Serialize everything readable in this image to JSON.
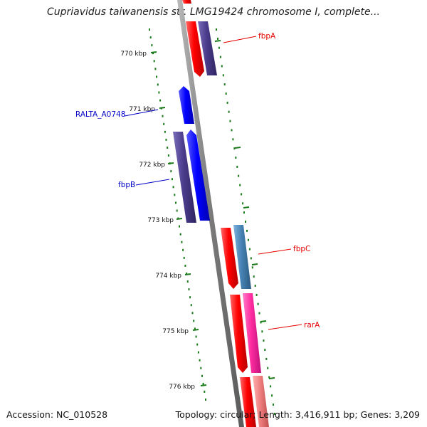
{
  "title": "Cupriavidus taiwanensis str. LMG19424 chromosome I, complete...",
  "footer": {
    "accession": "Accession: NC_010528",
    "summary": "Topology: circular; Length: 3,416,911 bp; Genes: 3,209"
  },
  "ticks": [
    "770 kbp",
    "771 kbp",
    "772 kbp",
    "773 kbp",
    "774 kbp",
    "775 kbp",
    "776 kbp"
  ],
  "gene_labels": [
    {
      "text": "fbpA",
      "color": "#e60000"
    },
    {
      "text": "RALTA_A0748",
      "color": "#0000c8"
    },
    {
      "text": "fbpB",
      "color": "#0000c8"
    },
    {
      "text": "fbpC",
      "color": "#e60000"
    },
    {
      "text": "rarA",
      "color": "#e60000"
    }
  ],
  "colors": {
    "backbone": "#8c8c8c",
    "tick_mark": "#1a7a1a",
    "gene_red": "#ff0000",
    "gene_blue": "#0000ff",
    "gene_purple": "#4b3c8c",
    "gene_steel": "#4682b4",
    "gene_pink": "#ff2da0",
    "gene_salmon": "#f08080"
  }
}
